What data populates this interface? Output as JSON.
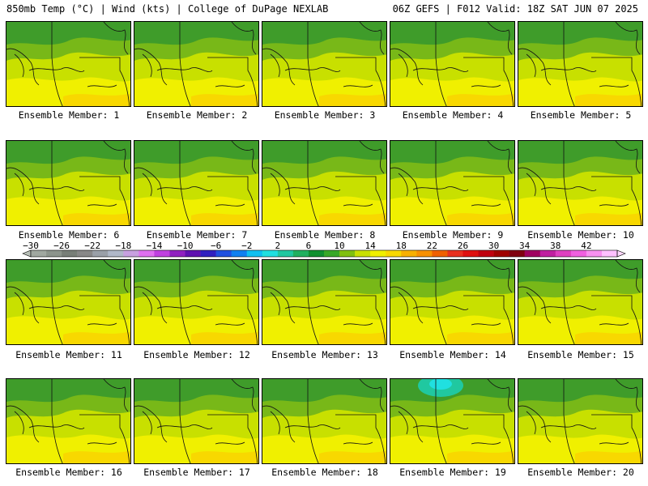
{
  "header": {
    "left_title": "850mb Temp (°C) | Wind (kts) | College of DuPage NEXLAB",
    "right_title": "06Z GEFS | F012 Valid: 18Z SAT JUN 07 2025"
  },
  "member_label_prefix": "Ensemble Member:",
  "members": [
    {
      "id": "1"
    },
    {
      "id": "2"
    },
    {
      "id": "3"
    },
    {
      "id": "4"
    },
    {
      "id": "5"
    },
    {
      "id": "6"
    },
    {
      "id": "7"
    },
    {
      "id": "8"
    },
    {
      "id": "9"
    },
    {
      "id": "10"
    },
    {
      "id": "11"
    },
    {
      "id": "12"
    },
    {
      "id": "13"
    },
    {
      "id": "14"
    },
    {
      "id": "15"
    },
    {
      "id": "16"
    },
    {
      "id": "17"
    },
    {
      "id": "18"
    },
    {
      "id": "19"
    },
    {
      "id": "20"
    }
  ],
  "colorbar": {
    "tick_labels": [
      "-30",
      "-26",
      "-22",
      "-18",
      "-14",
      "-10",
      "-6",
      "-2",
      "2",
      "6",
      "10",
      "14",
      "18",
      "22",
      "26",
      "30",
      "34",
      "38",
      "42"
    ],
    "colors": [
      "#a0a8a0",
      "#8c948c",
      "#787f78",
      "#888888",
      "#9aa0a8",
      "#b0b8c8",
      "#c8a0e0",
      "#e070f0",
      "#c040e0",
      "#9020c0",
      "#6010b0",
      "#3020c0",
      "#2050e0",
      "#1080f0",
      "#10c0f0",
      "#20e0e0",
      "#20c8a0",
      "#20b060",
      "#109030",
      "#38a828",
      "#80c010",
      "#c8e000",
      "#f0f000",
      "#f8d800",
      "#f8b000",
      "#f89000",
      "#f06000",
      "#e83020",
      "#e01010",
      "#c00010",
      "#a00000",
      "#800010",
      "#a00060",
      "#c020a0",
      "#e040c0",
      "#f060e0",
      "#f890f0",
      "#ffc0ff"
    ]
  }
}
